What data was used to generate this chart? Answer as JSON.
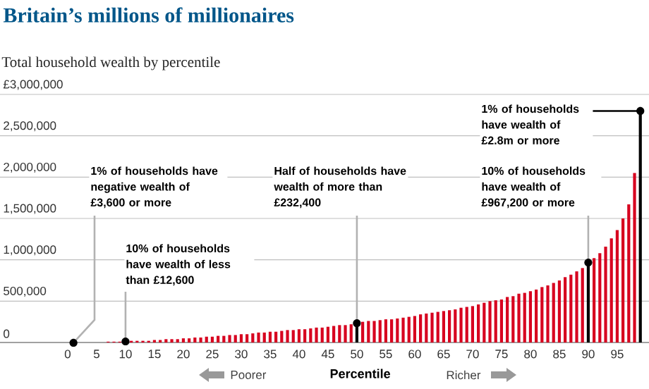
{
  "chart_data": {
    "type": "bar",
    "title": "Britain’s millions of millionaires",
    "subtitle": "Total household wealth by percentile",
    "xlabel": "Percentile",
    "x": [
      1,
      2,
      3,
      4,
      5,
      6,
      7,
      8,
      9,
      10,
      11,
      12,
      13,
      14,
      15,
      16,
      17,
      18,
      19,
      20,
      21,
      22,
      23,
      24,
      25,
      26,
      27,
      28,
      29,
      30,
      31,
      32,
      33,
      34,
      35,
      36,
      37,
      38,
      39,
      40,
      41,
      42,
      43,
      44,
      45,
      46,
      47,
      48,
      49,
      50,
      51,
      52,
      53,
      54,
      55,
      56,
      57,
      58,
      59,
      60,
      61,
      62,
      63,
      64,
      65,
      66,
      67,
      68,
      69,
      70,
      71,
      72,
      73,
      74,
      75,
      76,
      77,
      78,
      79,
      80,
      81,
      82,
      83,
      84,
      85,
      86,
      87,
      88,
      89,
      90,
      91,
      92,
      93,
      94,
      95,
      96,
      97,
      98,
      99
    ],
    "values": [
      -3600,
      0,
      0,
      0,
      0,
      0,
      10000,
      10000,
      10000,
      12600,
      20000,
      20000,
      20000,
      20000,
      30000,
      30000,
      40000,
      40000,
      40000,
      50000,
      50000,
      60000,
      60000,
      70000,
      70000,
      80000,
      80000,
      90000,
      90000,
      100000,
      100000,
      110000,
      120000,
      120000,
      130000,
      130000,
      140000,
      150000,
      150000,
      160000,
      160000,
      170000,
      180000,
      180000,
      190000,
      200000,
      210000,
      210000,
      220000,
      232400,
      250000,
      260000,
      260000,
      270000,
      280000,
      280000,
      290000,
      300000,
      310000,
      320000,
      340000,
      350000,
      360000,
      370000,
      380000,
      390000,
      400000,
      420000,
      430000,
      440000,
      460000,
      480000,
      500000,
      510000,
      520000,
      550000,
      560000,
      590000,
      600000,
      620000,
      640000,
      670000,
      690000,
      720000,
      750000,
      790000,
      820000,
      860000,
      900000,
      967200,
      1020000,
      1080000,
      1160000,
      1260000,
      1360000,
      1500000,
      1670000,
      2050000,
      2800000
    ],
    "colors": [
      "#d7001f",
      "#d7001f",
      "#d7001f",
      "#d7001f",
      "#d7001f",
      "#d7001f",
      "#d7001f",
      "#d7001f",
      "#d7001f",
      "#000000",
      "#d7001f",
      "#d7001f",
      "#d7001f",
      "#d7001f",
      "#d7001f",
      "#d7001f",
      "#d7001f",
      "#d7001f",
      "#d7001f",
      "#d7001f",
      "#d7001f",
      "#d7001f",
      "#d7001f",
      "#d7001f",
      "#d7001f",
      "#d7001f",
      "#d7001f",
      "#d7001f",
      "#d7001f",
      "#d7001f",
      "#d7001f",
      "#d7001f",
      "#d7001f",
      "#d7001f",
      "#d7001f",
      "#d7001f",
      "#d7001f",
      "#d7001f",
      "#d7001f",
      "#d7001f",
      "#d7001f",
      "#d7001f",
      "#d7001f",
      "#d7001f",
      "#d7001f",
      "#d7001f",
      "#d7001f",
      "#d7001f",
      "#d7001f",
      "#000000",
      "#d7001f",
      "#d7001f",
      "#d7001f",
      "#d7001f",
      "#d7001f",
      "#d7001f",
      "#d7001f",
      "#d7001f",
      "#d7001f",
      "#d7001f",
      "#d7001f",
      "#d7001f",
      "#d7001f",
      "#d7001f",
      "#d7001f",
      "#d7001f",
      "#d7001f",
      "#d7001f",
      "#d7001f",
      "#d7001f",
      "#d7001f",
      "#d7001f",
      "#d7001f",
      "#d7001f",
      "#d7001f",
      "#d7001f",
      "#d7001f",
      "#d7001f",
      "#d7001f",
      "#d7001f",
      "#d7001f",
      "#d7001f",
      "#d7001f",
      "#d7001f",
      "#d7001f",
      "#d7001f",
      "#d7001f",
      "#d7001f",
      "#d7001f",
      "#000000",
      "#d7001f",
      "#d7001f",
      "#d7001f",
      "#d7001f",
      "#d7001f",
      "#d7001f",
      "#d7001f",
      "#d7001f",
      "#000000"
    ],
    "xlim": [
      -11.7,
      100.5
    ],
    "ylim": [
      -3600,
      3000000
    ],
    "xticks": [
      0,
      5,
      10,
      15,
      20,
      25,
      30,
      35,
      40,
      45,
      50,
      55,
      60,
      65,
      70,
      75,
      80,
      85,
      90,
      95
    ],
    "yticks": [
      0,
      {
        "value": 500000,
        "label": "500,000"
      },
      {
        "value": 1000000,
        "label": "1,000,000"
      },
      {
        "value": 1500000,
        "label": "1,500,000"
      },
      {
        "value": 2000000,
        "label": "2,000,000"
      },
      {
        "value": 2500000,
        "label": "2,500,000"
      },
      {
        "value": 3000000,
        "label": "£3,000,000"
      }
    ],
    "grid": "y",
    "annotations": [
      {
        "text": "1% of households have negative wealth of £3,600 or more",
        "x": 1,
        "y": -3600
      },
      {
        "text": "10% of households have wealth of less than £12,600",
        "x": 10,
        "y": 12600
      },
      {
        "text": "Half of households have wealth of more than £232,400",
        "x": 50,
        "y": 232400
      },
      {
        "text": "10% of households have wealth of £967,200 or more",
        "x": 90,
        "y": 967200
      },
      {
        "text": "1% of households have wealth of £2.8m or more",
        "x": 99,
        "y": 2800000
      },
      "Poorer",
      "Richer"
    ]
  }
}
